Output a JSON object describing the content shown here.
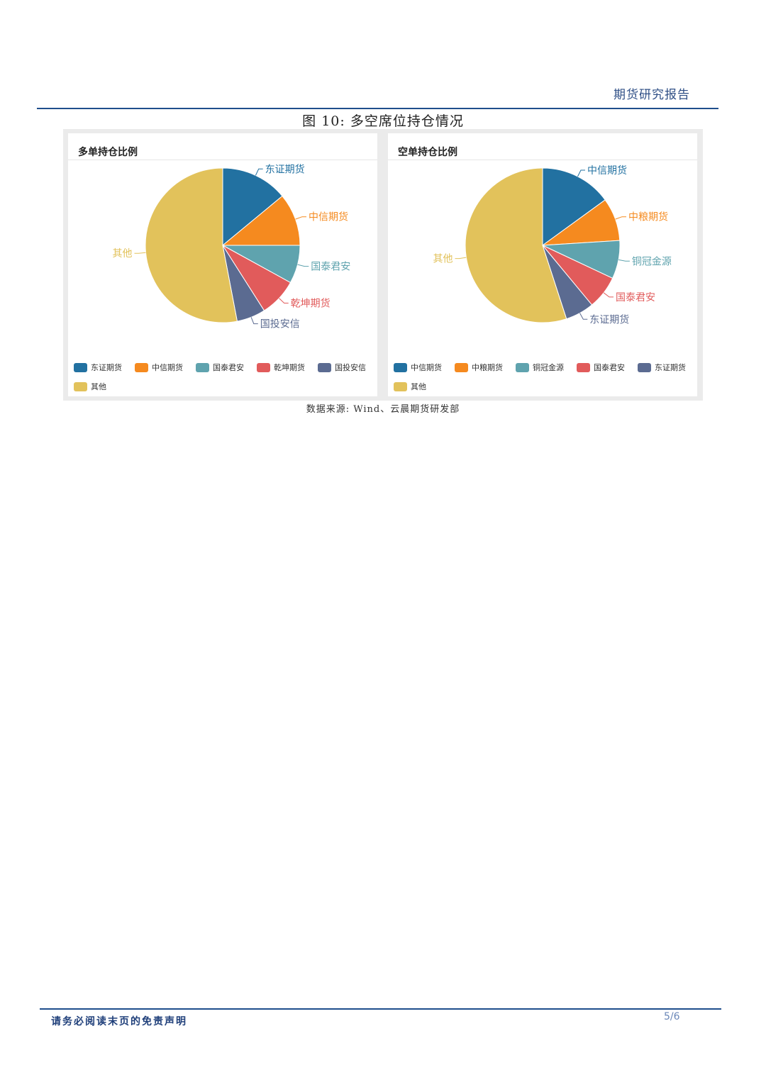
{
  "header": {
    "report_title": "期货研究报告"
  },
  "figure": {
    "title": "图 10:  多空席位持仓情况",
    "source": "数据来源:  Wind、云晨期货研发部"
  },
  "footer": {
    "disclaimer": "请务必阅读末页的免责声明",
    "page_number": "5/6"
  },
  "chart_data": [
    {
      "type": "pie",
      "title": "多单持仓比例",
      "labels": [
        "东证期货",
        "中信期货",
        "国泰君安",
        "乾坤期货",
        "国投安信",
        "其他"
      ],
      "values": [
        14,
        11,
        8,
        8,
        6,
        53
      ],
      "colors": [
        "#2271a1",
        "#f58a1f",
        "#5fa3ae",
        "#e15b5b",
        "#5b6b91",
        "#e2c25b"
      ],
      "legend_position": "bottom"
    },
    {
      "type": "pie",
      "title": "空单持仓比例",
      "labels": [
        "中信期货",
        "中粮期货",
        "铜冠金源",
        "国泰君安",
        "东证期货",
        "其他"
      ],
      "values": [
        15,
        9,
        8,
        7,
        6,
        55
      ],
      "colors": [
        "#2271a1",
        "#f58a1f",
        "#5fa3ae",
        "#e15b5b",
        "#5b6b91",
        "#e2c25b"
      ],
      "legend_position": "bottom"
    }
  ]
}
